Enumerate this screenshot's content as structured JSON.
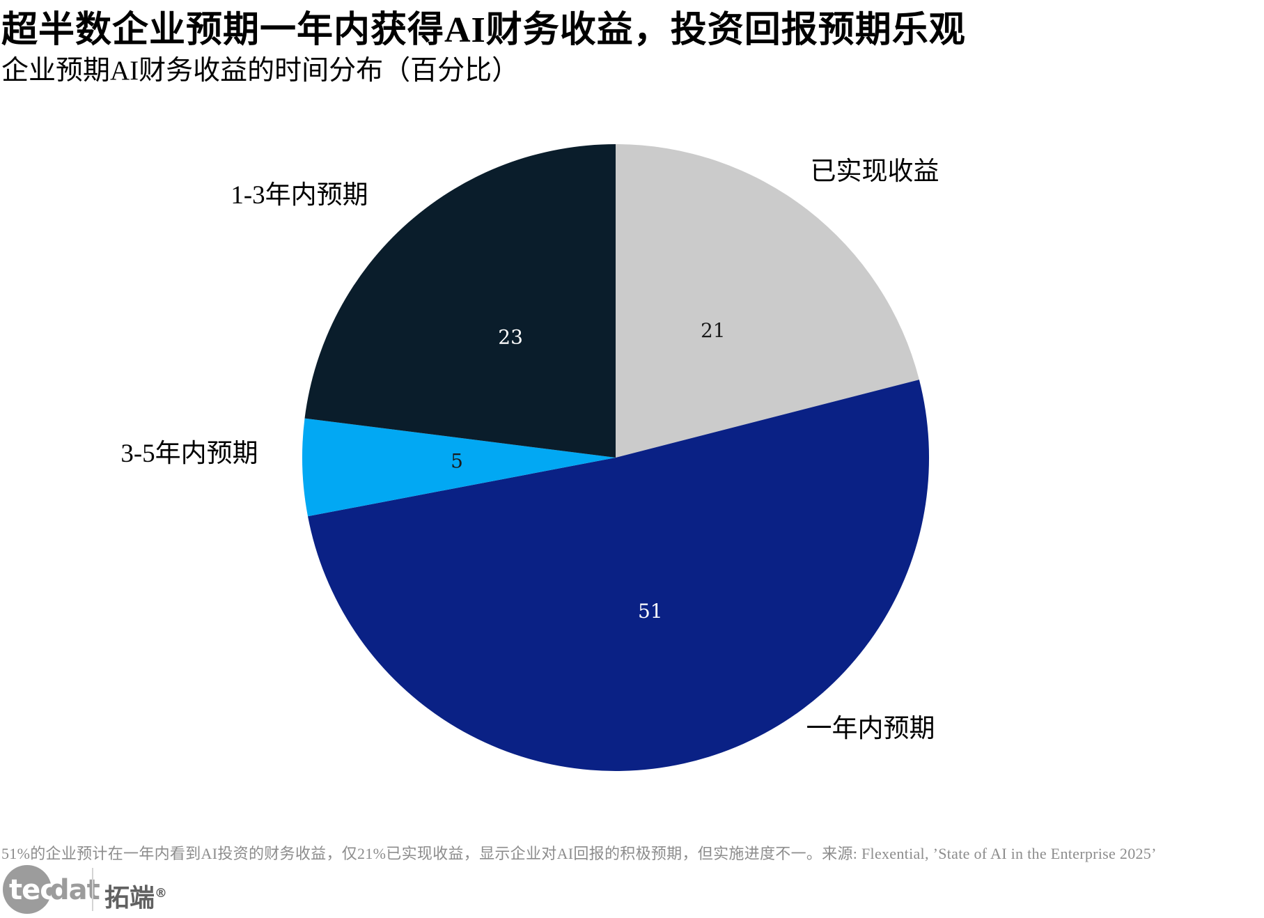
{
  "header": {
    "title": "超半数企业预期一年内获得AI财务收益，投资回报预期乐观",
    "subtitle": "企业预期AI财务收益的时间分布（百分比）"
  },
  "chart_data": {
    "type": "pie",
    "title": "企业预期AI财务收益的时间分布（百分比）",
    "unit": "percent",
    "start_angle": "12-oclock, clockwise",
    "slices": [
      {
        "id": "realized-gains",
        "label": "已实现收益",
        "value": 21,
        "color": "#cbcbcb",
        "value_label_color": "#1a1a1a"
      },
      {
        "id": "within-1-year",
        "label": "一年内预期",
        "value": 51,
        "color": "#0a2185",
        "value_label_color": "#ffffff"
      },
      {
        "id": "3-5-years",
        "label": "3-5年内预期",
        "value": 5,
        "color": "#02a8f3",
        "value_label_color": "#1a1a1a"
      },
      {
        "id": "1-3-years",
        "label": "1-3年内预期",
        "value": 23,
        "color": "#0a1d2b",
        "value_label_color": "#ffffff"
      }
    ]
  },
  "footer": {
    "note": "51%的企业预计在一年内看到AI投资的财务收益，仅21%已实现收益，显示企业对AI回报的积极预期，但实施进度不一。来源: Flexential, ’State of AI in the Enterprise 2025’"
  },
  "logo": {
    "latin_primary": "tec",
    "latin_secondary": "dat",
    "cjk_name": "拓端",
    "registered_mark": "®"
  }
}
